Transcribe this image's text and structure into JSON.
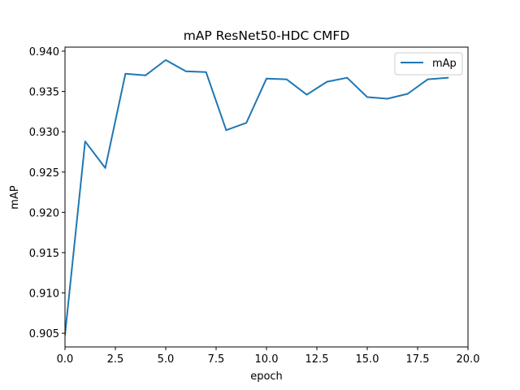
{
  "chart_data": {
    "type": "line",
    "title": "mAP ResNet50-HDC CMFD",
    "xlabel": "epoch",
    "ylabel": "mAP",
    "xlim": [
      0,
      20
    ],
    "ylim": [
      0.9033,
      0.9405
    ],
    "xticks": [
      0,
      2.5,
      5,
      7.5,
      10,
      12.5,
      15,
      17.5,
      20
    ],
    "xtick_labels": [
      "0.0",
      "2.5",
      "5.0",
      "7.5",
      "10.0",
      "12.5",
      "15.0",
      "17.5",
      "20.0"
    ],
    "yticks": [
      0.905,
      0.91,
      0.915,
      0.92,
      0.925,
      0.93,
      0.935,
      0.94
    ],
    "ytick_labels": [
      "0.905",
      "0.910",
      "0.915",
      "0.920",
      "0.925",
      "0.930",
      "0.935",
      "0.940"
    ],
    "grid": false,
    "legend_position": "top-right",
    "series": [
      {
        "name": "mAp",
        "color": "#1f77b4",
        "x": [
          0,
          1,
          2,
          3,
          4,
          5,
          6,
          7,
          8,
          9,
          10,
          11,
          12,
          13,
          14,
          15,
          16,
          17,
          18,
          19
        ],
        "values": [
          0.9048,
          0.9288,
          0.9255,
          0.9372,
          0.937,
          0.9389,
          0.9375,
          0.9374,
          0.9302,
          0.9311,
          0.9366,
          0.9365,
          0.9346,
          0.9362,
          0.9367,
          0.9343,
          0.9341,
          0.9347,
          0.9365,
          0.9367
        ]
      }
    ]
  }
}
